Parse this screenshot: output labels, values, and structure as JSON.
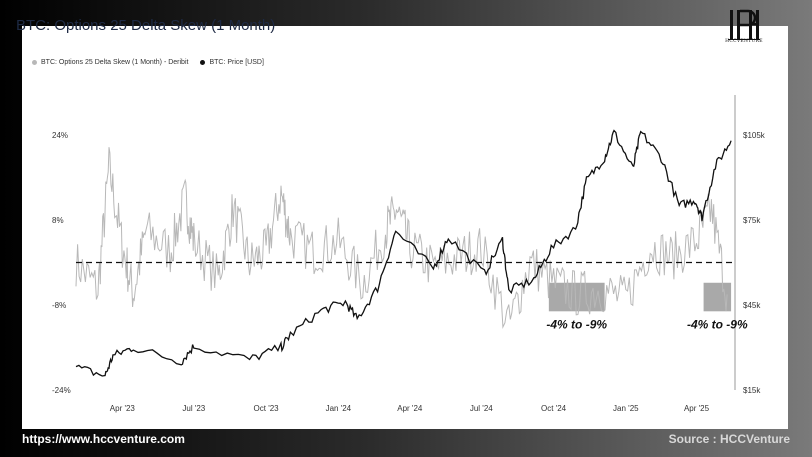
{
  "header": {
    "title": "BTC: Options 25 Delta Skew (1 Month)",
    "logo_text": "HCCVENTURE"
  },
  "footer": {
    "url": "https://www.hccventure.com",
    "source": "Source : HCCVenture"
  },
  "colors": {
    "skew": "#b8b8b8",
    "price": "#111111",
    "zero_line": "#111111",
    "highlight_box": "#9a9a9a"
  },
  "chart_data": {
    "type": "line",
    "title": "BTC: Options 25 Delta Skew (1 Month)",
    "legend": [
      "BTC: Options 25 Delta Skew (1 Month) - Deribit",
      "BTC: Price [USD]"
    ],
    "legend_position": "top-left",
    "grid": false,
    "x_tick_labels": [
      "Apr '23",
      "Jul '23",
      "Oct '23",
      "Jan '24",
      "Apr '24",
      "Jul '24",
      "Oct '24",
      "Jan '25",
      "Apr '25"
    ],
    "x_range": [
      "2023-02-01",
      "2025-05-20"
    ],
    "y_left": {
      "label": "",
      "ticks": [
        "24%",
        "8%",
        "-8%",
        "-24%"
      ],
      "ylim": [
        -24,
        24
      ]
    },
    "y_right": {
      "label": "",
      "ticks": [
        "$105k",
        "$75k",
        "$45k",
        "$15k"
      ],
      "ylim": [
        15000,
        105000
      ]
    },
    "reference_line": {
      "axis": "left",
      "value": 0,
      "style": "dashed"
    },
    "series": [
      {
        "name": "BTC: Options 25 Delta Skew (1 Month) - Deribit",
        "axis": "left",
        "x": [
          "2023-02-01",
          "2023-03-01",
          "2023-03-15",
          "2023-04-01",
          "2023-04-15",
          "2023-05-01",
          "2023-06-01",
          "2023-06-20",
          "2023-07-01",
          "2023-08-01",
          "2023-08-20",
          "2023-09-10",
          "2023-10-01",
          "2023-10-20",
          "2023-11-01",
          "2023-12-01",
          "2024-01-01",
          "2024-02-01",
          "2024-03-01",
          "2024-03-15",
          "2024-04-01",
          "2024-05-01",
          "2024-06-01",
          "2024-07-01",
          "2024-08-05",
          "2024-09-01",
          "2024-10-01",
          "2024-11-01",
          "2024-12-01",
          "2025-01-01",
          "2025-02-01",
          "2025-03-01",
          "2025-04-01",
          "2025-04-20",
          "2025-05-10"
        ],
        "values": [
          0,
          -5,
          18,
          3,
          -6,
          6,
          2,
          12,
          4,
          -3,
          10,
          0,
          2,
          13,
          5,
          2,
          4,
          -4,
          6,
          10,
          3,
          -1,
          1,
          3,
          -12,
          0,
          -4,
          -6,
          -5,
          -7,
          3,
          1,
          4,
          10,
          -6
        ]
      },
      {
        "name": "BTC: Price [USD]",
        "axis": "right",
        "x": [
          "2023-02-01",
          "2023-03-10",
          "2023-03-20",
          "2023-04-15",
          "2023-06-15",
          "2023-07-01",
          "2023-09-10",
          "2023-10-20",
          "2023-11-01",
          "2023-12-10",
          "2024-01-10",
          "2024-01-25",
          "2024-02-20",
          "2024-03-14",
          "2024-05-01",
          "2024-05-20",
          "2024-07-05",
          "2024-07-28",
          "2024-08-05",
          "2024-09-06",
          "2024-09-28",
          "2024-10-29",
          "2024-11-12",
          "2024-12-05",
          "2024-12-17",
          "2025-01-10",
          "2025-01-20",
          "2025-02-15",
          "2025-03-10",
          "2025-03-30",
          "2025-04-08",
          "2025-04-25",
          "2025-05-15"
        ],
        "values": [
          23000,
          20000,
          27000,
          30000,
          25000,
          30500,
          25800,
          30000,
          34500,
          43000,
          46000,
          40000,
          51000,
          71000,
          58000,
          69000,
          56000,
          68000,
          50000,
          54000,
          65000,
          72000,
          89000,
          97000,
          106000,
          93000,
          106000,
          97000,
          80000,
          82000,
          76000,
          94000,
          103000
        ]
      }
    ],
    "annotations": [
      {
        "text": "-4% to -9%",
        "x_range": [
          "2024-09-25",
          "2024-12-05"
        ],
        "y_range": [
          -9,
          -4
        ]
      },
      {
        "text": "-4% to -9%",
        "x_range": [
          "2025-04-10",
          "2025-05-15"
        ],
        "y_range": [
          -9,
          -4
        ]
      }
    ]
  }
}
